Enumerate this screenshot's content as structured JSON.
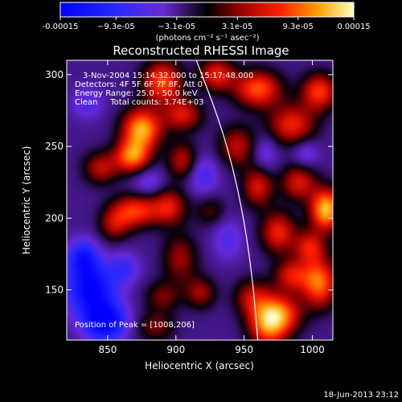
{
  "chart_data": {
    "type": "heatmap",
    "title": "Reconstructed RHESSI Image",
    "xlabel": "Heliocentric X (arcsec)",
    "ylabel": "Heliocentric Y (arcsec)",
    "xlim": [
      820,
      1015
    ],
    "ylim": [
      115,
      310
    ],
    "xticks": [
      850,
      900,
      950,
      1000
    ],
    "yticks": [
      150,
      200,
      250,
      300
    ],
    "colorbar": {
      "range": [
        -0.00015,
        0.00015
      ],
      "tick_values": [
        -0.00015,
        -9.3e-05,
        -3.1e-05,
        3.1e-05,
        9.3e-05,
        0.00015
      ],
      "tick_labels": [
        "-0.00015",
        "−9.3e-05",
        "−3.1e-05",
        "3.1e-05",
        "9.3e-05",
        "0.00015"
      ],
      "units": "(photons cm⁻² s⁻¹ asec⁻²)"
    },
    "annotations": [
      "3-Nov-2004 15:14:32.000 to 15:17:48.000",
      "Detectors: 4F 5F 6F 7F 8F, Att 0",
      "Energy Range: 25.0 - 50.0 keV",
      "Clean     Total counts: 3.74E+03"
    ],
    "peak_label": "Position of Peak = [1008,206]",
    "peak": [
      1008,
      206
    ],
    "limb_curve": [
      [
        915,
        310
      ],
      [
        935,
        260
      ],
      [
        948,
        210
      ],
      [
        956,
        160
      ],
      [
        960,
        115
      ]
    ],
    "features": [
      {
        "x": 875,
        "y": 262,
        "value": 0.00014,
        "sx": 10,
        "sy": 10
      },
      {
        "x": 868,
        "y": 243,
        "value": 0.00012,
        "sx": 9,
        "sy": 8
      },
      {
        "x": 890,
        "y": 295,
        "value": 0.00011,
        "sx": 10,
        "sy": 10
      },
      {
        "x": 905,
        "y": 272,
        "value": 8e-05,
        "sx": 10,
        "sy": 8
      },
      {
        "x": 845,
        "y": 235,
        "value": 7e-05,
        "sx": 9,
        "sy": 8
      },
      {
        "x": 905,
        "y": 240,
        "value": 7e-05,
        "sx": 8,
        "sy": 9
      },
      {
        "x": 870,
        "y": 205,
        "value": 0.0001,
        "sx": 12,
        "sy": 8
      },
      {
        "x": 895,
        "y": 208,
        "value": 8e-05,
        "sx": 9,
        "sy": 9
      },
      {
        "x": 855,
        "y": 195,
        "value": 6e-05,
        "sx": 8,
        "sy": 8
      },
      {
        "x": 903,
        "y": 172,
        "value": 6e-05,
        "sx": 9,
        "sy": 12
      },
      {
        "x": 918,
        "y": 148,
        "value": 6e-05,
        "sx": 8,
        "sy": 8
      },
      {
        "x": 890,
        "y": 145,
        "value": 5e-05,
        "sx": 9,
        "sy": 8
      },
      {
        "x": 885,
        "y": 124,
        "value": 5e-05,
        "sx": 10,
        "sy": 7
      },
      {
        "x": 955,
        "y": 145,
        "value": 6e-05,
        "sx": 9,
        "sy": 9
      },
      {
        "x": 980,
        "y": 133,
        "value": 7e-05,
        "sx": 10,
        "sy": 9
      },
      {
        "x": 968,
        "y": 128,
        "value": 0.00014,
        "sx": 10,
        "sy": 12
      },
      {
        "x": 1005,
        "y": 155,
        "value": 0.00012,
        "sx": 9,
        "sy": 12
      },
      {
        "x": 985,
        "y": 160,
        "value": 8e-05,
        "sx": 9,
        "sy": 8
      },
      {
        "x": 975,
        "y": 190,
        "value": 9e-05,
        "sx": 9,
        "sy": 10
      },
      {
        "x": 998,
        "y": 180,
        "value": 8e-05,
        "sx": 8,
        "sy": 8
      },
      {
        "x": 1010,
        "y": 206,
        "value": 0.00015,
        "sx": 8,
        "sy": 10
      },
      {
        "x": 990,
        "y": 225,
        "value": 8e-05,
        "sx": 9,
        "sy": 9
      },
      {
        "x": 960,
        "y": 222,
        "value": 8e-05,
        "sx": 8,
        "sy": 10
      },
      {
        "x": 945,
        "y": 250,
        "value": 7e-05,
        "sx": 10,
        "sy": 10
      },
      {
        "x": 985,
        "y": 265,
        "value": 9e-05,
        "sx": 12,
        "sy": 10
      },
      {
        "x": 1005,
        "y": 288,
        "value": 0.0001,
        "sx": 9,
        "sy": 9
      },
      {
        "x": 960,
        "y": 290,
        "value": 0.00011,
        "sx": 12,
        "sy": 9
      },
      {
        "x": 930,
        "y": 300,
        "value": 9e-05,
        "sx": 9,
        "sy": 8
      },
      {
        "x": 925,
        "y": 205,
        "value": 4e-05,
        "sx": 8,
        "sy": 8
      },
      {
        "x": 838,
        "y": 150,
        "value": -0.00012,
        "sx": 12,
        "sy": 12
      },
      {
        "x": 848,
        "y": 128,
        "value": -0.00013,
        "sx": 11,
        "sy": 9
      },
      {
        "x": 832,
        "y": 172,
        "value": -9e-05,
        "sx": 8,
        "sy": 9
      },
      {
        "x": 862,
        "y": 165,
        "value": -5e-05,
        "sx": 8,
        "sy": 8
      },
      {
        "x": 835,
        "y": 280,
        "value": -4e-05,
        "sx": 8,
        "sy": 8
      },
      {
        "x": 880,
        "y": 225,
        "value": -4e-05,
        "sx": 8,
        "sy": 7
      },
      {
        "x": 920,
        "y": 230,
        "value": -5e-05,
        "sx": 8,
        "sy": 10
      },
      {
        "x": 938,
        "y": 185,
        "value": -4e-05,
        "sx": 8,
        "sy": 10
      },
      {
        "x": 965,
        "y": 245,
        "value": -4e-05,
        "sx": 7,
        "sy": 9
      },
      {
        "x": 995,
        "y": 245,
        "value": -4e-05,
        "sx": 7,
        "sy": 7
      }
    ]
  },
  "footer": {
    "timestamp": "18-Jun-2013 23:12"
  }
}
